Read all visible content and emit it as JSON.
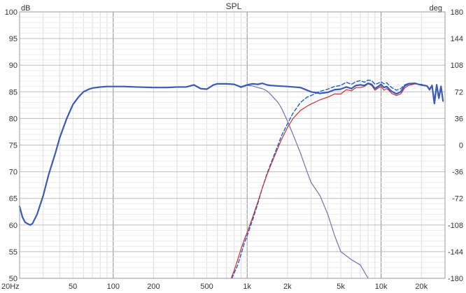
{
  "chart_data": {
    "type": "line",
    "title": "SPL",
    "y_unit": "dB",
    "y2_unit": "deg",
    "x_scale": "log",
    "xlim": [
      20,
      30000
    ],
    "ylim": [
      50,
      100
    ],
    "y2lim": [
      -180,
      180
    ],
    "grid": true,
    "x_ticks": [
      {
        "value": 20,
        "label": "20Hz"
      },
      {
        "value": 50,
        "label": "50"
      },
      {
        "value": 100,
        "label": "100"
      },
      {
        "value": 200,
        "label": "200"
      },
      {
        "value": 500,
        "label": "500"
      },
      {
        "value": 1000,
        "label": "1k"
      },
      {
        "value": 2000,
        "label": "2k"
      },
      {
        "value": 5000,
        "label": "5k"
      },
      {
        "value": 10000,
        "label": "10k"
      },
      {
        "value": 20000,
        "label": "20k"
      }
    ],
    "y_ticks": [
      {
        "value": 100,
        "label": "100"
      },
      {
        "value": 95,
        "label": "95"
      },
      {
        "value": 90,
        "label": "90"
      },
      {
        "value": 85,
        "label": "85"
      },
      {
        "value": 80,
        "label": "80"
      },
      {
        "value": 75,
        "label": "75"
      },
      {
        "value": 70,
        "label": "70"
      },
      {
        "value": 65,
        "label": "65"
      },
      {
        "value": 60,
        "label": "60"
      },
      {
        "value": 55,
        "label": "55"
      },
      {
        "value": 50,
        "label": "50"
      }
    ],
    "y2_ticks": [
      {
        "value": 180,
        "label": "180"
      },
      {
        "value": 144,
        "label": "144"
      },
      {
        "value": 108,
        "label": "108"
      },
      {
        "value": 72,
        "label": "72"
      },
      {
        "value": 36,
        "label": "36"
      },
      {
        "value": 0,
        "label": "0"
      },
      {
        "value": -36,
        "label": "-36"
      },
      {
        "value": -72,
        "label": "-72"
      },
      {
        "value": -108,
        "label": "-108"
      },
      {
        "value": -144,
        "label": "-144"
      },
      {
        "value": -180,
        "label": "-180"
      }
    ],
    "series": [
      {
        "color": "#7070b0",
        "dash": "",
        "width": 1.2,
        "x": [
          20,
          21,
          22,
          24,
          25,
          27,
          30,
          33,
          37,
          40,
          45,
          50,
          55,
          60,
          66,
          70,
          80,
          90,
          100,
          120,
          150,
          200,
          250,
          300,
          350,
          400,
          450,
          500,
          560,
          600,
          700,
          800,
          900,
          1000,
          1100,
          1200,
          1300,
          1400,
          1500,
          1700,
          1800,
          2000,
          2200,
          2500,
          2800,
          3000,
          3500,
          4000,
          4500,
          5000,
          6000,
          7000,
          8000
        ],
        "y": [
          63.5,
          61.5,
          60.5,
          60,
          60.3,
          62,
          65.5,
          69.5,
          73.5,
          76.5,
          80,
          82.6,
          84,
          85,
          85.5,
          85.7,
          85.9,
          86,
          86,
          86,
          85.9,
          85.8,
          85.8,
          85.9,
          85.9,
          86.3,
          85.6,
          85.5,
          86.3,
          86.5,
          86.5,
          86.4,
          85.8,
          86.2,
          86.1,
          85.8,
          85.6,
          85.2,
          84.5,
          83,
          82,
          79.5,
          77,
          73.5,
          70,
          68,
          65.5,
          62,
          58,
          55,
          53.5,
          52.5,
          50
        ]
      },
      {
        "color": "#1a5fd6",
        "dash": "5,3",
        "width": 1.4,
        "x": [
          770,
          800,
          850,
          900,
          950,
          1000,
          1100,
          1200,
          1300,
          1400,
          1500,
          1700,
          1800,
          2000,
          2200,
          2500,
          2800,
          3000,
          3500,
          4000,
          4500,
          5000,
          5500,
          6000,
          6500,
          7000,
          7500,
          8000,
          8500,
          9000,
          9500,
          10000,
          10500,
          11000,
          11500,
          12000,
          13000,
          14000,
          15000,
          16000,
          18000,
          19000,
          20000,
          22000,
          23000,
          24000,
          25000,
          26000,
          27000,
          28000,
          29000
        ],
        "y": [
          50,
          51,
          52.5,
          54.5,
          56.5,
          58,
          61,
          64,
          67,
          69.5,
          71.5,
          75,
          76.7,
          79,
          81,
          83,
          84,
          84.3,
          85.1,
          85.5,
          86,
          86.2,
          86.8,
          86.4,
          86.9,
          87.1,
          86.8,
          87.2,
          87.1,
          86.4,
          86.6,
          86.9,
          86.5,
          86.7,
          86.2,
          85.8,
          85.3,
          85.6,
          86.3,
          86.6,
          86.6,
          86.4,
          86.4,
          86.1,
          85.6,
          86.2,
          83.5,
          86.4,
          84,
          86.1,
          83.5
        ]
      },
      {
        "color": "#d03030",
        "dash": "",
        "width": 1.2,
        "x": [
          760,
          800,
          850,
          900,
          950,
          1000,
          1100,
          1200,
          1300,
          1400,
          1500,
          1700,
          1800,
          2000,
          2200,
          2500,
          2800,
          3000,
          3500,
          4000,
          4500,
          5000,
          5500,
          6000,
          6500,
          7000,
          7500,
          8000,
          8500,
          9000,
          9500,
          10000,
          10500,
          11000,
          11500,
          12000,
          13000,
          14000,
          15000,
          16000,
          18000,
          19000,
          20000,
          22000,
          23000,
          24000,
          25000,
          26000,
          27000,
          28000,
          29000
        ],
        "y": [
          50,
          51.5,
          53.5,
          55.5,
          57.2,
          58.6,
          61.5,
          64.3,
          67,
          69.3,
          71.2,
          74.5,
          76,
          78.3,
          80,
          81.5,
          82.3,
          82.7,
          83.5,
          84,
          84.6,
          84.6,
          85.4,
          85.2,
          85.8,
          85.8,
          86,
          86.5,
          86.2,
          85.3,
          85.7,
          86,
          85.3,
          85.6,
          85.2,
          84.7,
          84.3,
          84.6,
          85.7,
          86.2,
          86.5,
          86.4,
          86.2,
          86.1,
          85.3,
          86.1,
          83,
          86.2,
          83.7,
          86,
          83.2
        ]
      },
      {
        "color": "#3b5ab5",
        "dash": "",
        "width": 2.2,
        "x": [
          20,
          21,
          22,
          24,
          25,
          27,
          30,
          33,
          37,
          40,
          45,
          50,
          55,
          60,
          66,
          70,
          80,
          90,
          100,
          120,
          150,
          200,
          250,
          300,
          350,
          400,
          450,
          500,
          560,
          600,
          700,
          800,
          900,
          1000,
          1100,
          1200,
          1300,
          1400,
          1500,
          1700,
          2000,
          2500,
          3000,
          3500,
          4000,
          4500,
          5000,
          5500,
          6000,
          6500,
          7000,
          7500,
          8000,
          8500,
          9000,
          9500,
          10000,
          10500,
          11000,
          11500,
          12000,
          13000,
          14000,
          15000,
          16000,
          18000,
          19000,
          20000,
          22000,
          23000,
          24000,
          25000,
          26000,
          27000,
          28000,
          29000
        ],
        "y": [
          63.5,
          61.5,
          60.5,
          60,
          60.3,
          62,
          65.5,
          69.5,
          73.5,
          76.5,
          80,
          82.6,
          84,
          85,
          85.5,
          85.7,
          85.9,
          86,
          86,
          86,
          85.9,
          85.8,
          85.8,
          85.9,
          85.9,
          86.3,
          85.6,
          85.5,
          86.3,
          86.5,
          86.5,
          86.4,
          85.9,
          86.3,
          86.5,
          86.4,
          86.6,
          86.3,
          86.2,
          86.1,
          86,
          85.8,
          85,
          84.7,
          84.9,
          85.4,
          85.5,
          85.9,
          85.6,
          86.2,
          86.3,
          86.2,
          86.6,
          86.4,
          85.6,
          86,
          86.4,
          85.8,
          86,
          85.5,
          85.1,
          84.6,
          85,
          86.1,
          86.5,
          86.6,
          86.4,
          86.3,
          86.1,
          85.4,
          86.2,
          82.8,
          86.3,
          83.8,
          86,
          83.3
        ]
      }
    ]
  }
}
